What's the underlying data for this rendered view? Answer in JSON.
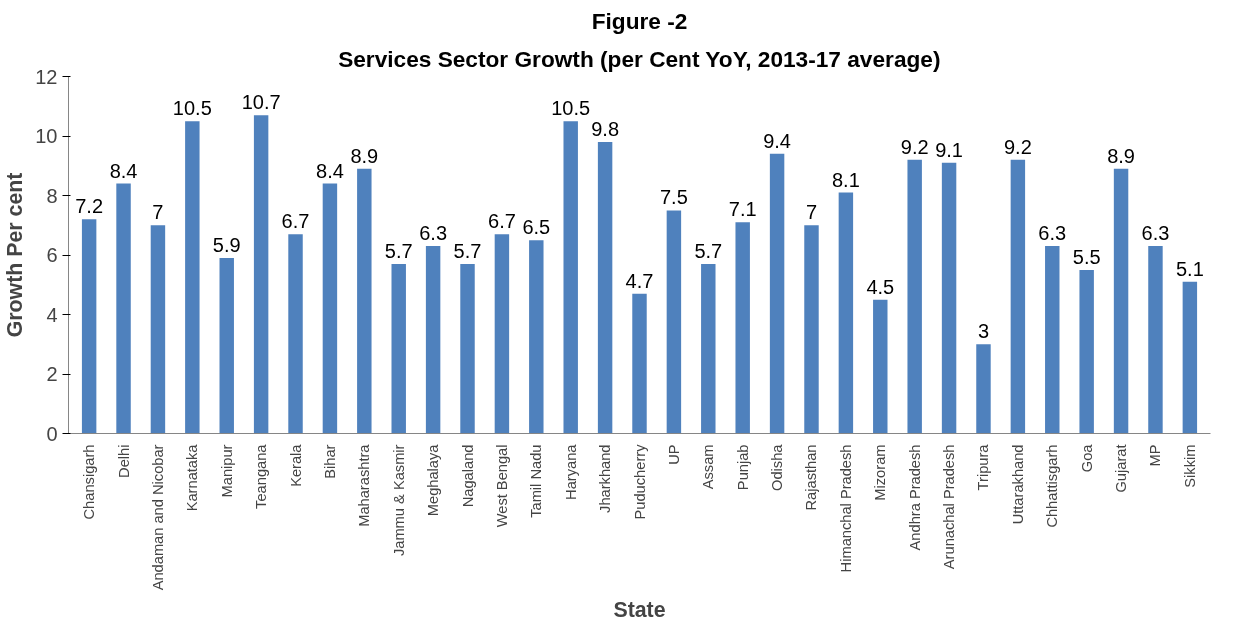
{
  "chart_data": {
    "type": "bar",
    "title": "Figure -2",
    "subtitle": "Services Sector Growth (per Cent YoY, 2013-17 average)",
    "xlabel": "State",
    "ylabel": "Growth Per cent",
    "categories": [
      "Chansigarh",
      "Delhi",
      "Andaman and Nicobar",
      "Karnataka",
      "Manipur",
      "Teangana",
      "Kerala",
      "Bihar",
      "Maharashtra",
      "Jammu & Kasmir",
      "Meghalaya",
      "Nagaland",
      "West Bengal",
      "Tamil Nadu",
      "Haryana",
      "Jharkhand",
      "Puducherry",
      "UP",
      "Assam",
      "Punjab",
      "Odisha",
      "Rajasthan",
      "Himanchal Pradesh",
      "Mizoram",
      "Andhra Pradesh",
      "Arunachal Pradesh",
      "Tripura",
      "Uttarakhand",
      "Chhattisgarh",
      "Goa",
      "Gujarat",
      "MP",
      "Sikkim"
    ],
    "values": [
      7.2,
      8.4,
      7,
      10.5,
      5.9,
      10.7,
      6.7,
      8.4,
      8.9,
      5.7,
      6.3,
      5.7,
      6.7,
      6.5,
      10.5,
      9.8,
      4.7,
      7.5,
      5.7,
      7.1,
      9.4,
      7,
      8.1,
      4.5,
      9.2,
      9.1,
      3,
      9.2,
      6.3,
      5.5,
      8.9,
      6.3,
      5.1
    ],
    "color": "#4f81bd",
    "ylim": [
      0,
      12
    ],
    "yticks": [
      0,
      2,
      4,
      6,
      8,
      10,
      12
    ],
    "data_labels": true,
    "grid": false
  }
}
